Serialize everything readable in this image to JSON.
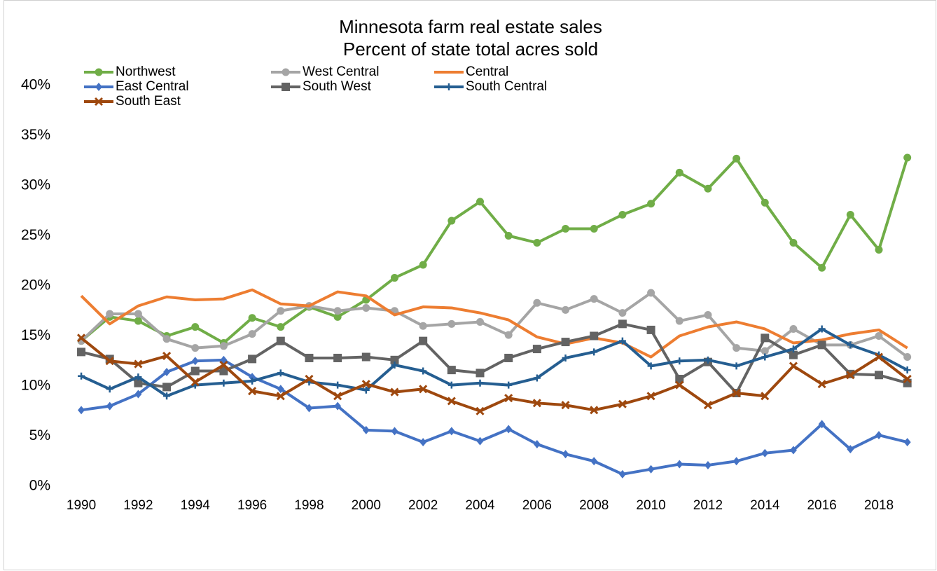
{
  "chart_data": {
    "type": "line",
    "title": "Minnesota farm real estate sales",
    "subtitle": "Percent of state total acres sold",
    "x": [
      1990,
      1991,
      1992,
      1993,
      1994,
      1995,
      1996,
      1997,
      1998,
      1999,
      2000,
      2001,
      2002,
      2003,
      2004,
      2005,
      2006,
      2007,
      2008,
      2009,
      2010,
      2011,
      2012,
      2013,
      2014,
      2015,
      2016,
      2017,
      2018,
      2019
    ],
    "xlim": [
      1989.5,
      2019.5
    ],
    "xticks": [
      1990,
      1992,
      1994,
      1996,
      1998,
      2000,
      2002,
      2004,
      2006,
      2008,
      2010,
      2012,
      2014,
      2016,
      2018
    ],
    "ylim": [
      0,
      40
    ],
    "yticks": [
      {
        "value": 0,
        "label": "0%"
      },
      {
        "value": 5,
        "label": "5%"
      },
      {
        "value": 10,
        "label": "10%"
      },
      {
        "value": 15,
        "label": "15%"
      },
      {
        "value": 20,
        "label": "20%"
      },
      {
        "value": 25,
        "label": "25%"
      },
      {
        "value": 30,
        "label": "30%"
      },
      {
        "value": 35,
        "label": "35%"
      },
      {
        "value": 40,
        "label": "40%"
      }
    ],
    "grid": false,
    "legend": "top-left",
    "series": [
      {
        "name": "Northwest",
        "color": "#70ad47",
        "marker": "circle",
        "values": [
          14.5,
          16.9,
          16.5,
          15.0,
          15.9,
          14.3,
          16.8,
          15.9,
          17.9,
          16.9,
          18.6,
          20.8,
          22.1,
          26.5,
          28.4,
          25.0,
          24.3,
          25.7,
          25.7,
          27.1,
          28.2,
          31.3,
          29.7,
          32.7,
          28.3,
          24.3,
          21.8,
          27.1,
          23.6,
          32.8
        ]
      },
      {
        "name": "West Central",
        "color": "#a5a5a5",
        "marker": "circle",
        "values": [
          14.5,
          17.2,
          17.2,
          14.7,
          13.8,
          14.0,
          15.2,
          17.5,
          18.0,
          17.5,
          17.8,
          17.5,
          16.0,
          16.2,
          16.4,
          15.1,
          18.3,
          17.6,
          18.7,
          17.3,
          19.3,
          16.5,
          17.1,
          13.8,
          13.5,
          15.7,
          14.1,
          14.1,
          15.0,
          12.9
        ]
      },
      {
        "name": "Central",
        "color": "#ed7d31",
        "marker": "none",
        "values": [
          19.0,
          16.2,
          18.0,
          18.9,
          18.6,
          18.7,
          19.6,
          18.2,
          18.0,
          19.4,
          19.0,
          17.1,
          17.9,
          17.8,
          17.3,
          16.6,
          14.9,
          14.2,
          14.8,
          14.3,
          12.9,
          15.0,
          15.9,
          16.4,
          15.7,
          14.3,
          14.6,
          15.2,
          15.6,
          13.8
        ]
      },
      {
        "name": "East Central",
        "color": "#4472c4",
        "marker": "diamond",
        "values": [
          7.6,
          8.0,
          9.2,
          11.4,
          12.5,
          12.6,
          10.9,
          9.7,
          7.8,
          8.0,
          5.6,
          5.5,
          4.4,
          5.5,
          4.5,
          5.7,
          4.2,
          3.2,
          2.5,
          1.2,
          1.7,
          2.2,
          2.1,
          2.5,
          3.3,
          3.6,
          6.2,
          3.7,
          5.1,
          4.4
        ]
      },
      {
        "name": "South West",
        "color": "#636363",
        "marker": "square",
        "values": [
          13.4,
          12.7,
          10.3,
          9.9,
          11.5,
          11.5,
          12.7,
          14.5,
          12.8,
          12.8,
          12.9,
          12.6,
          14.5,
          11.6,
          11.3,
          12.8,
          13.7,
          14.4,
          15.0,
          16.2,
          15.6,
          10.7,
          12.4,
          9.3,
          14.8,
          13.1,
          14.1,
          11.2,
          11.1,
          10.3
        ]
      },
      {
        "name": "South Central",
        "color": "#255e91",
        "marker": "plus",
        "values": [
          11.0,
          9.7,
          10.9,
          9.0,
          10.1,
          10.3,
          10.5,
          11.3,
          10.4,
          10.1,
          9.6,
          12.1,
          11.5,
          10.1,
          10.3,
          10.1,
          10.8,
          12.8,
          13.4,
          14.5,
          12.0,
          12.5,
          12.6,
          12.0,
          12.9,
          13.7,
          15.7,
          14.1,
          13.1,
          11.6
        ]
      },
      {
        "name": "South East",
        "color": "#9e480e",
        "marker": "x",
        "values": [
          14.8,
          12.5,
          12.2,
          13.0,
          10.4,
          12.1,
          9.5,
          9.0,
          10.7,
          9.0,
          10.2,
          9.4,
          9.7,
          8.5,
          7.5,
          8.8,
          8.3,
          8.1,
          7.6,
          8.2,
          9.0,
          10.1,
          8.1,
          9.3,
          9.0,
          12.0,
          10.2,
          11.1,
          12.9,
          10.7
        ]
      }
    ]
  }
}
